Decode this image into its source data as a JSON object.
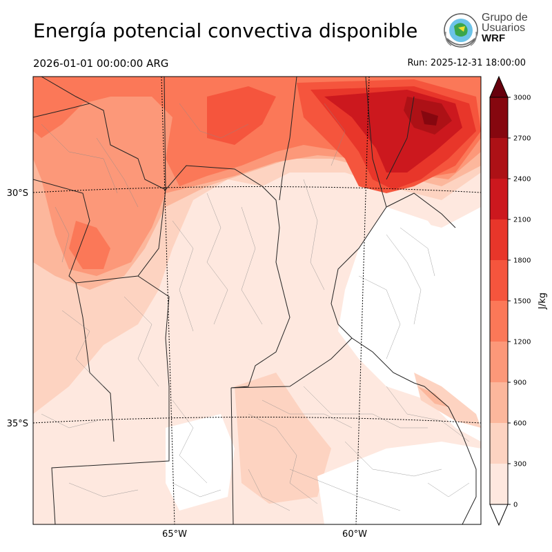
{
  "header": {
    "title": "Energía potencial convectiva disponible",
    "valid_time": "2026-01-01 00:00:00 ARG",
    "run_time": "Run: 2025-12-31 18:00:00"
  },
  "logo": {
    "line1": "Grupo de",
    "line2": "Usuarios",
    "line3": "WRF"
  },
  "map": {
    "lat_labels": [
      "30°S",
      "35°S"
    ],
    "lon_labels": [
      "65°W",
      "60°W"
    ]
  },
  "colorbar": {
    "unit": "J/kg",
    "levels": [
      "0",
      "300",
      "600",
      "900",
      "1200",
      "1500",
      "1800",
      "2100",
      "2400",
      "2700",
      "3000"
    ],
    "colors": [
      "#fee8df",
      "#fdd3c1",
      "#fcb79c",
      "#fc9879",
      "#fb7858",
      "#f5553d",
      "#e8362a",
      "#cc181e",
      "#ad1116",
      "#86070f"
    ],
    "under_color": "#ffffff",
    "over_color": "#67000d"
  }
}
